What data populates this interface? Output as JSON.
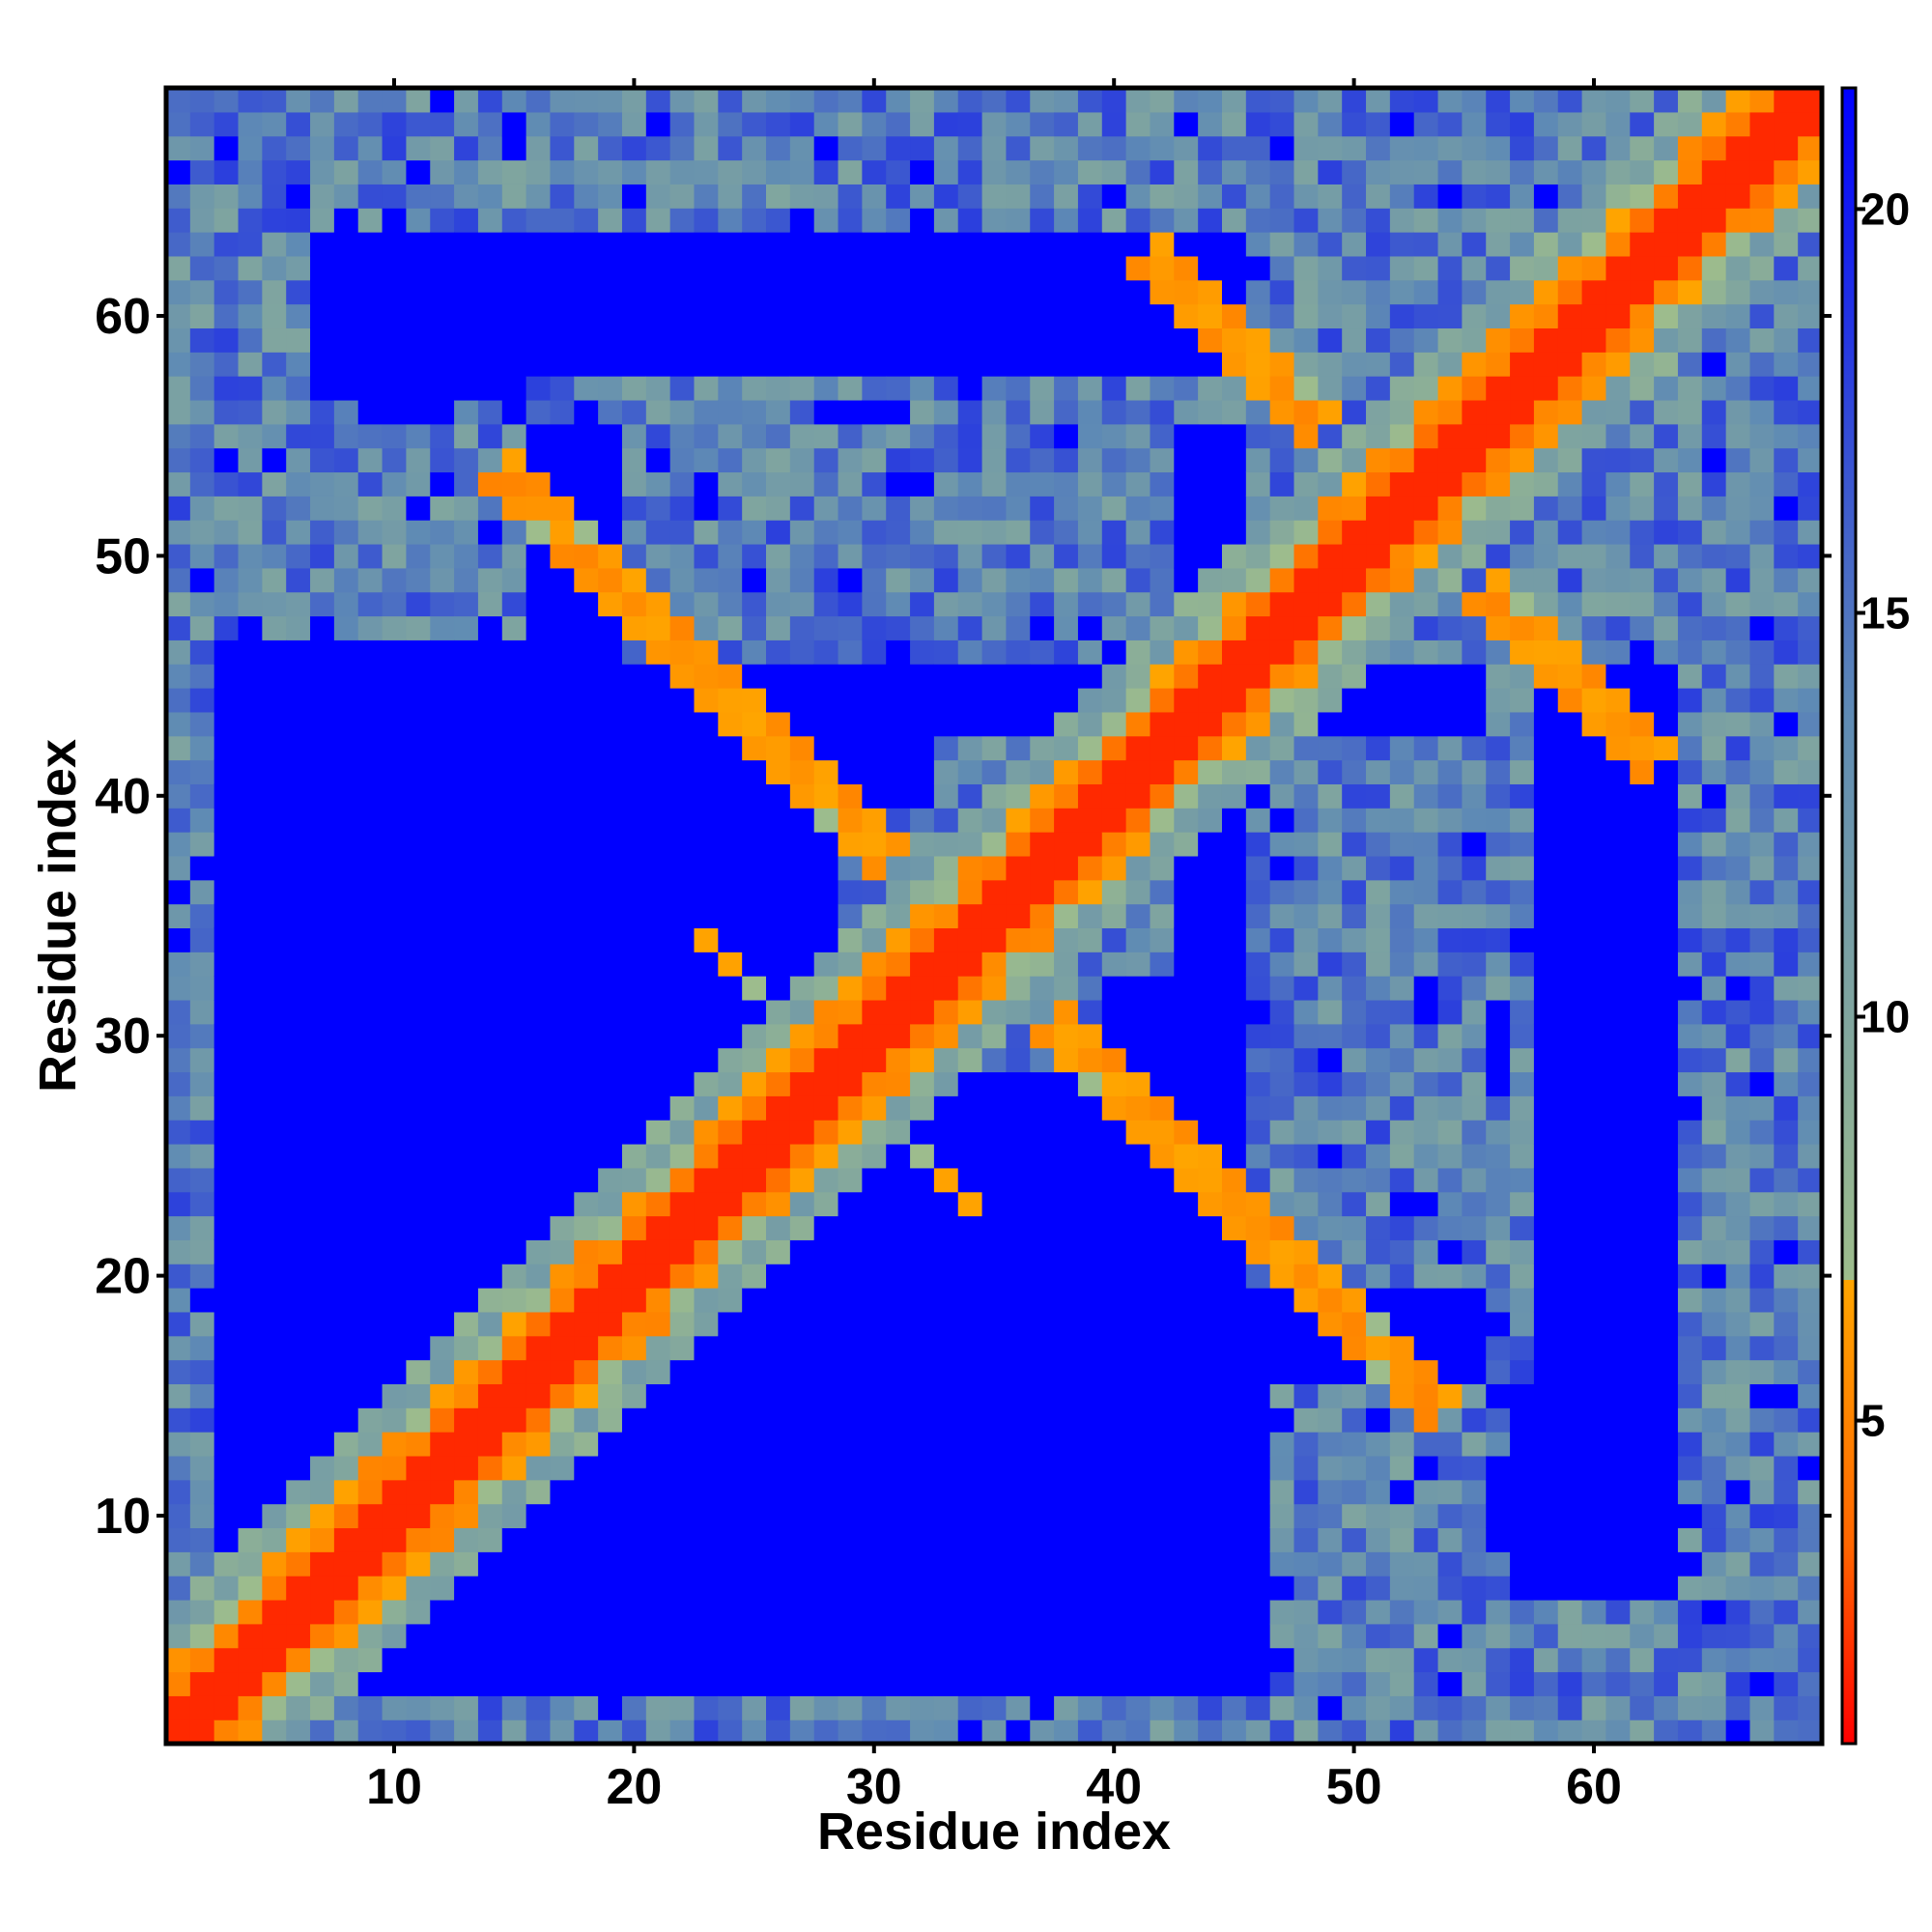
{
  "chart_data": {
    "type": "heatmap",
    "title": "",
    "xlabel": "Residue index",
    "ylabel": "Residue index",
    "x_range": [
      0.5,
      69.5
    ],
    "y_range": [
      0.5,
      69.5
    ],
    "n_residues": 69,
    "x_ticks": [
      10,
      20,
      30,
      40,
      50,
      60
    ],
    "y_ticks": [
      10,
      20,
      30,
      40,
      50,
      60
    ],
    "colorbar": {
      "ticks": [
        5,
        10,
        15,
        20
      ],
      "range": [
        1,
        21.5
      ],
      "colors": [
        "#ff0000",
        "#ff6600",
        "#ffa500",
        "#9ebd8c",
        "#5f8bb4",
        "#0000ff"
      ],
      "stops": [
        0,
        0.12,
        0.28,
        0.28,
        0.62,
        1.0
      ]
    },
    "description": "Symmetric residue-residue distance map (Angstrom); near-zero (red) along the main diagonal, orange contacts near the diagonal and anti-diagonal hairpins, and large-distance (blue) blocks.",
    "blue_blocks": [
      [
        40,
        55,
        16,
        19
      ],
      [
        40,
        43,
        32,
        22
      ],
      [
        34,
        45,
        10,
        4
      ],
      [
        27,
        29,
        18,
        6
      ],
      [
        43,
        45,
        55,
        17
      ],
      [
        58,
        63,
        45,
        8
      ],
      [
        56,
        63,
        12,
        9
      ],
      [
        8,
        28,
        13,
        8
      ],
      [
        10,
        28,
        45,
        6
      ],
      [
        8,
        46,
        17,
        3
      ],
      [
        7,
        15,
        63,
        57
      ]
    ]
  },
  "colors": {
    "diagonal": "#ff0000",
    "near_contact": "#ff6600",
    "contact": "#ffa500",
    "medium": "#9ebd8c",
    "far": "#5f8bb4",
    "very_far": "#0000ff"
  }
}
